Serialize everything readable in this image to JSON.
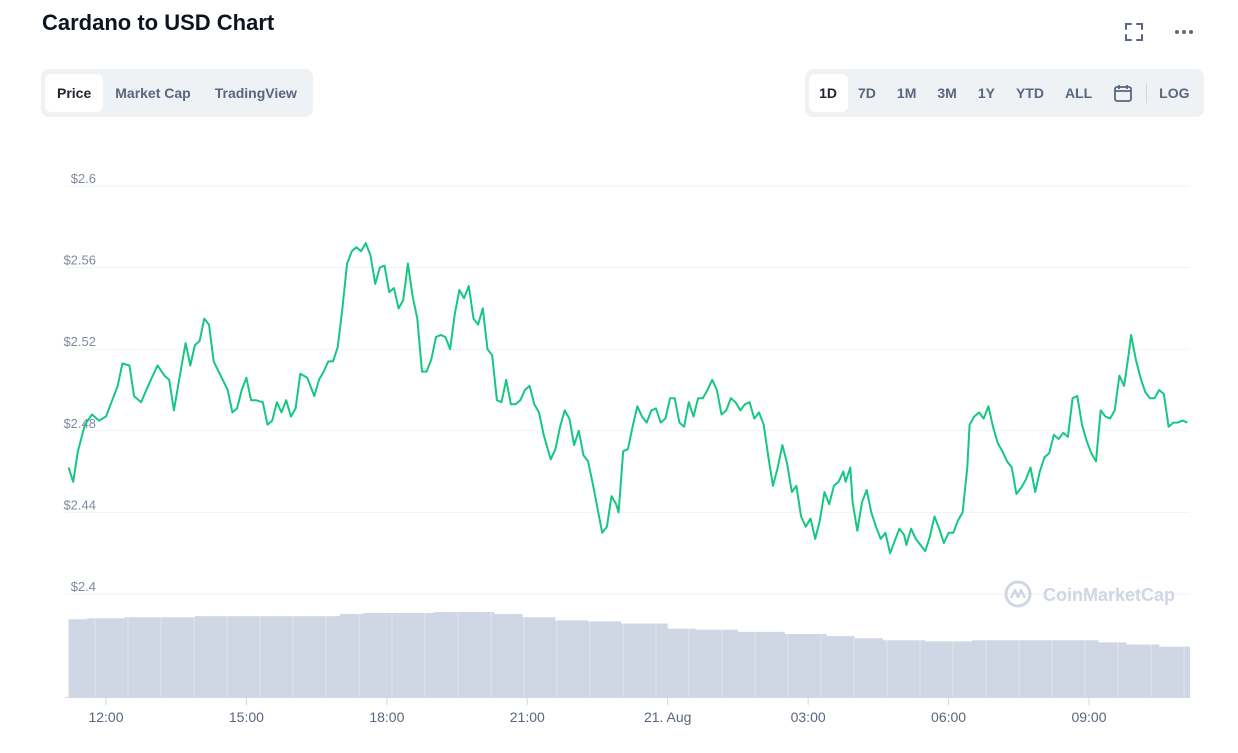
{
  "header": {
    "title": "Cardano to USD Chart"
  },
  "tabs": [
    {
      "label": "Price",
      "active": true
    },
    {
      "label": "Market Cap",
      "active": false
    },
    {
      "label": "TradingView",
      "active": false
    }
  ],
  "ranges": [
    {
      "label": "1D",
      "active": true
    },
    {
      "label": "7D",
      "active": false
    },
    {
      "label": "1M",
      "active": false
    },
    {
      "label": "3M",
      "active": false
    },
    {
      "label": "1Y",
      "active": false
    },
    {
      "label": "YTD",
      "active": false
    },
    {
      "label": "ALL",
      "active": false
    }
  ],
  "log_label": "LOG",
  "icons": {
    "fullscreen": "fullscreen-icon",
    "more": "more-icon",
    "calendar": "calendar-icon"
  },
  "watermark": "CoinMarketCap",
  "colors": {
    "line": "#16c784",
    "volume": "#cfd6e4",
    "grid": "#eff2f5"
  },
  "chart_data": {
    "type": "line",
    "title": "",
    "y_ticks": [
      "$2.4",
      "$2.44",
      "$2.48",
      "$2.52",
      "$2.56",
      "$2.6"
    ],
    "y_tick_values": [
      2.4,
      2.44,
      2.48,
      2.52,
      2.56,
      2.6
    ],
    "ylim": [
      2.4,
      2.6
    ],
    "x_ticks": [
      "12:00",
      "15:00",
      "18:00",
      "21:00",
      "21. Aug",
      "03:00",
      "06:00",
      "09:00"
    ],
    "x_tick_hours": [
      12,
      15,
      18,
      21,
      24,
      27,
      30,
      33
    ],
    "xlim_hours": [
      11.2,
      35.2
    ],
    "grid": true,
    "series": [
      {
        "values": [
          [
            11.2,
            2.462
          ],
          [
            11.3,
            2.455
          ],
          [
            11.4,
            2.47
          ],
          [
            11.55,
            2.483
          ],
          [
            11.7,
            2.488
          ],
          [
            11.85,
            2.485
          ],
          [
            12.0,
            2.487
          ],
          [
            12.15,
            2.496
          ],
          [
            12.25,
            2.502
          ],
          [
            12.35,
            2.513
          ],
          [
            12.5,
            2.512
          ],
          [
            12.6,
            2.497
          ],
          [
            12.75,
            2.494
          ],
          [
            12.9,
            2.502
          ],
          [
            13.1,
            2.512
          ],
          [
            13.25,
            2.507
          ],
          [
            13.35,
            2.505
          ],
          [
            13.45,
            2.49
          ],
          [
            13.6,
            2.51
          ],
          [
            13.7,
            2.523
          ],
          [
            13.8,
            2.512
          ],
          [
            13.9,
            2.522
          ],
          [
            14.0,
            2.524
          ],
          [
            14.1,
            2.535
          ],
          [
            14.2,
            2.532
          ],
          [
            14.3,
            2.514
          ],
          [
            14.45,
            2.507
          ],
          [
            14.6,
            2.5
          ],
          [
            14.7,
            2.489
          ],
          [
            14.8,
            2.491
          ],
          [
            14.9,
            2.5
          ],
          [
            15.0,
            2.506
          ],
          [
            15.1,
            2.495
          ],
          [
            15.2,
            2.495
          ],
          [
            15.35,
            2.494
          ],
          [
            15.45,
            2.483
          ],
          [
            15.55,
            2.485
          ],
          [
            15.65,
            2.494
          ],
          [
            15.75,
            2.489
          ],
          [
            15.85,
            2.495
          ],
          [
            15.95,
            2.487
          ],
          [
            16.05,
            2.491
          ],
          [
            16.15,
            2.508
          ],
          [
            16.3,
            2.506
          ],
          [
            16.45,
            2.497
          ],
          [
            16.55,
            2.505
          ],
          [
            16.65,
            2.509
          ],
          [
            16.75,
            2.514
          ],
          [
            16.85,
            2.514
          ],
          [
            16.95,
            2.521
          ],
          [
            17.05,
            2.54
          ],
          [
            17.15,
            2.562
          ],
          [
            17.25,
            2.568
          ],
          [
            17.35,
            2.57
          ],
          [
            17.45,
            2.568
          ],
          [
            17.55,
            2.572
          ],
          [
            17.65,
            2.566
          ],
          [
            17.75,
            2.552
          ],
          [
            17.85,
            2.56
          ],
          [
            17.95,
            2.561
          ],
          [
            18.05,
            2.548
          ],
          [
            18.15,
            2.55
          ],
          [
            18.25,
            2.54
          ],
          [
            18.35,
            2.544
          ],
          [
            18.45,
            2.562
          ],
          [
            18.55,
            2.546
          ],
          [
            18.65,
            2.535
          ],
          [
            18.75,
            2.509
          ],
          [
            18.85,
            2.509
          ],
          [
            18.95,
            2.515
          ],
          [
            19.05,
            2.526
          ],
          [
            19.15,
            2.527
          ],
          [
            19.25,
            2.526
          ],
          [
            19.35,
            2.52
          ],
          [
            19.45,
            2.537
          ],
          [
            19.55,
            2.549
          ],
          [
            19.65,
            2.545
          ],
          [
            19.75,
            2.551
          ],
          [
            19.85,
            2.535
          ],
          [
            19.95,
            2.532
          ],
          [
            20.05,
            2.54
          ],
          [
            20.15,
            2.52
          ],
          [
            20.25,
            2.517
          ],
          [
            20.35,
            2.495
          ],
          [
            20.45,
            2.494
          ],
          [
            20.55,
            2.505
          ],
          [
            20.65,
            2.493
          ],
          [
            20.75,
            2.493
          ],
          [
            20.85,
            2.495
          ],
          [
            20.95,
            2.5
          ],
          [
            21.05,
            2.502
          ],
          [
            21.15,
            2.493
          ],
          [
            21.25,
            2.489
          ],
          [
            21.35,
            2.478
          ],
          [
            21.5,
            2.466
          ],
          [
            21.6,
            2.471
          ],
          [
            21.7,
            2.482
          ],
          [
            21.8,
            2.49
          ],
          [
            21.9,
            2.486
          ],
          [
            22.0,
            2.473
          ],
          [
            22.1,
            2.48
          ],
          [
            22.2,
            2.468
          ],
          [
            22.3,
            2.465
          ],
          [
            22.4,
            2.454
          ],
          [
            22.5,
            2.442
          ],
          [
            22.6,
            2.43
          ],
          [
            22.7,
            2.433
          ],
          [
            22.8,
            2.448
          ],
          [
            22.9,
            2.444
          ],
          [
            22.95,
            2.44
          ],
          [
            23.05,
            2.47
          ],
          [
            23.15,
            2.471
          ],
          [
            23.25,
            2.482
          ],
          [
            23.35,
            2.492
          ],
          [
            23.45,
            2.487
          ],
          [
            23.55,
            2.484
          ],
          [
            23.65,
            2.49
          ],
          [
            23.75,
            2.491
          ],
          [
            23.85,
            2.484
          ],
          [
            23.95,
            2.486
          ],
          [
            24.05,
            2.496
          ],
          [
            24.15,
            2.496
          ],
          [
            24.25,
            2.484
          ],
          [
            24.35,
            2.482
          ],
          [
            24.45,
            2.494
          ],
          [
            24.55,
            2.487
          ],
          [
            24.65,
            2.496
          ],
          [
            24.75,
            2.496
          ],
          [
            24.85,
            2.5
          ],
          [
            24.95,
            2.505
          ],
          [
            25.05,
            2.5
          ],
          [
            25.15,
            2.488
          ],
          [
            25.25,
            2.49
          ],
          [
            25.35,
            2.496
          ],
          [
            25.45,
            2.494
          ],
          [
            25.55,
            2.49
          ],
          [
            25.65,
            2.493
          ],
          [
            25.75,
            2.494
          ],
          [
            25.85,
            2.486
          ],
          [
            25.95,
            2.489
          ],
          [
            26.05,
            2.483
          ],
          [
            26.15,
            2.467
          ],
          [
            26.25,
            2.453
          ],
          [
            26.35,
            2.462
          ],
          [
            26.45,
            2.473
          ],
          [
            26.55,
            2.464
          ],
          [
            26.65,
            2.45
          ],
          [
            26.75,
            2.453
          ],
          [
            26.85,
            2.438
          ],
          [
            26.95,
            2.433
          ],
          [
            27.05,
            2.437
          ],
          [
            27.15,
            2.427
          ],
          [
            27.25,
            2.436
          ],
          [
            27.35,
            2.45
          ],
          [
            27.45,
            2.444
          ],
          [
            27.55,
            2.453
          ],
          [
            27.65,
            2.455
          ],
          [
            27.75,
            2.46
          ],
          [
            27.8,
            2.455
          ],
          [
            27.9,
            2.462
          ],
          [
            27.95,
            2.445
          ],
          [
            28.05,
            2.431
          ],
          [
            28.15,
            2.445
          ],
          [
            28.25,
            2.451
          ],
          [
            28.35,
            2.44
          ],
          [
            28.45,
            2.433
          ],
          [
            28.55,
            2.427
          ],
          [
            28.65,
            2.43
          ],
          [
            28.75,
            2.42
          ],
          [
            28.85,
            2.426
          ],
          [
            28.95,
            2.432
          ],
          [
            29.05,
            2.429
          ],
          [
            29.1,
            2.424
          ],
          [
            29.2,
            2.432
          ],
          [
            29.3,
            2.427
          ],
          [
            29.4,
            2.424
          ],
          [
            29.5,
            2.421
          ],
          [
            29.6,
            2.428
          ],
          [
            29.7,
            2.438
          ],
          [
            29.8,
            2.432
          ],
          [
            29.9,
            2.425
          ],
          [
            30.0,
            2.43
          ],
          [
            30.1,
            2.43
          ],
          [
            30.2,
            2.436
          ],
          [
            30.3,
            2.44
          ],
          [
            30.4,
            2.462
          ],
          [
            30.45,
            2.483
          ],
          [
            30.55,
            2.487
          ],
          [
            30.65,
            2.489
          ],
          [
            30.75,
            2.486
          ],
          [
            30.85,
            2.492
          ],
          [
            30.95,
            2.482
          ],
          [
            31.05,
            2.474
          ],
          [
            31.15,
            2.47
          ],
          [
            31.25,
            2.465
          ],
          [
            31.35,
            2.462
          ],
          [
            31.45,
            2.449
          ],
          [
            31.55,
            2.452
          ],
          [
            31.65,
            2.456
          ],
          [
            31.75,
            2.462
          ],
          [
            31.85,
            2.45
          ],
          [
            31.95,
            2.46
          ],
          [
            32.05,
            2.467
          ],
          [
            32.15,
            2.469
          ],
          [
            32.25,
            2.478
          ],
          [
            32.35,
            2.476
          ],
          [
            32.45,
            2.479
          ],
          [
            32.55,
            2.477
          ],
          [
            32.65,
            2.496
          ],
          [
            32.75,
            2.497
          ],
          [
            32.85,
            2.483
          ],
          [
            32.95,
            2.475
          ],
          [
            33.05,
            2.469
          ],
          [
            33.15,
            2.465
          ],
          [
            33.25,
            2.49
          ],
          [
            33.35,
            2.487
          ],
          [
            33.45,
            2.486
          ],
          [
            33.55,
            2.49
          ],
          [
            33.65,
            2.507
          ],
          [
            33.75,
            2.502
          ],
          [
            33.85,
            2.518
          ],
          [
            33.9,
            2.527
          ],
          [
            34.0,
            2.515
          ],
          [
            34.1,
            2.506
          ],
          [
            34.2,
            2.499
          ],
          [
            34.3,
            2.496
          ],
          [
            34.4,
            2.496
          ],
          [
            34.5,
            2.5
          ],
          [
            34.6,
            2.498
          ],
          [
            34.7,
            2.482
          ],
          [
            34.8,
            2.484
          ],
          [
            34.9,
            2.484
          ],
          [
            35.0,
            2.485
          ],
          [
            35.1,
            2.484
          ],
          [
            35.2,
            2.477
          ],
          [
            35.3,
            2.477
          ],
          [
            35.4,
            2.475
          ],
          [
            35.5,
            2.488
          ],
          [
            35.6,
            2.484
          ],
          [
            35.7,
            2.494
          ],
          [
            35.8,
            2.49
          ],
          [
            35.9,
            2.488
          ],
          [
            36.0,
            2.497
          ],
          [
            36.1,
            2.498
          ],
          [
            36.2,
            2.498
          ],
          [
            36.3,
            2.503
          ],
          [
            36.4,
            2.5
          ]
        ]
      }
    ],
    "volume": {
      "values": [
        [
          11.2,
          0.74
        ],
        [
          11.6,
          0.75
        ],
        [
          12.4,
          0.76
        ],
        [
          13.0,
          0.76
        ],
        [
          13.9,
          0.77
        ],
        [
          15.0,
          0.77
        ],
        [
          16.0,
          0.77
        ],
        [
          17.0,
          0.79
        ],
        [
          17.5,
          0.8
        ],
        [
          18.0,
          0.8
        ],
        [
          19.0,
          0.81
        ],
        [
          19.7,
          0.81
        ],
        [
          20.3,
          0.79
        ],
        [
          20.9,
          0.76
        ],
        [
          21.6,
          0.73
        ],
        [
          22.3,
          0.72
        ],
        [
          23.0,
          0.7
        ],
        [
          24.0,
          0.65
        ],
        [
          24.6,
          0.64
        ],
        [
          25.5,
          0.62
        ],
        [
          26.5,
          0.6
        ],
        [
          27.4,
          0.58
        ],
        [
          28.0,
          0.56
        ],
        [
          28.6,
          0.54
        ],
        [
          29.5,
          0.53
        ],
        [
          30.5,
          0.54
        ],
        [
          31.5,
          0.54
        ],
        [
          32.5,
          0.54
        ],
        [
          33.2,
          0.52
        ],
        [
          33.8,
          0.5
        ],
        [
          34.5,
          0.48
        ],
        [
          35.5,
          0.46
        ],
        [
          36.4,
          0.45
        ]
      ]
    }
  }
}
